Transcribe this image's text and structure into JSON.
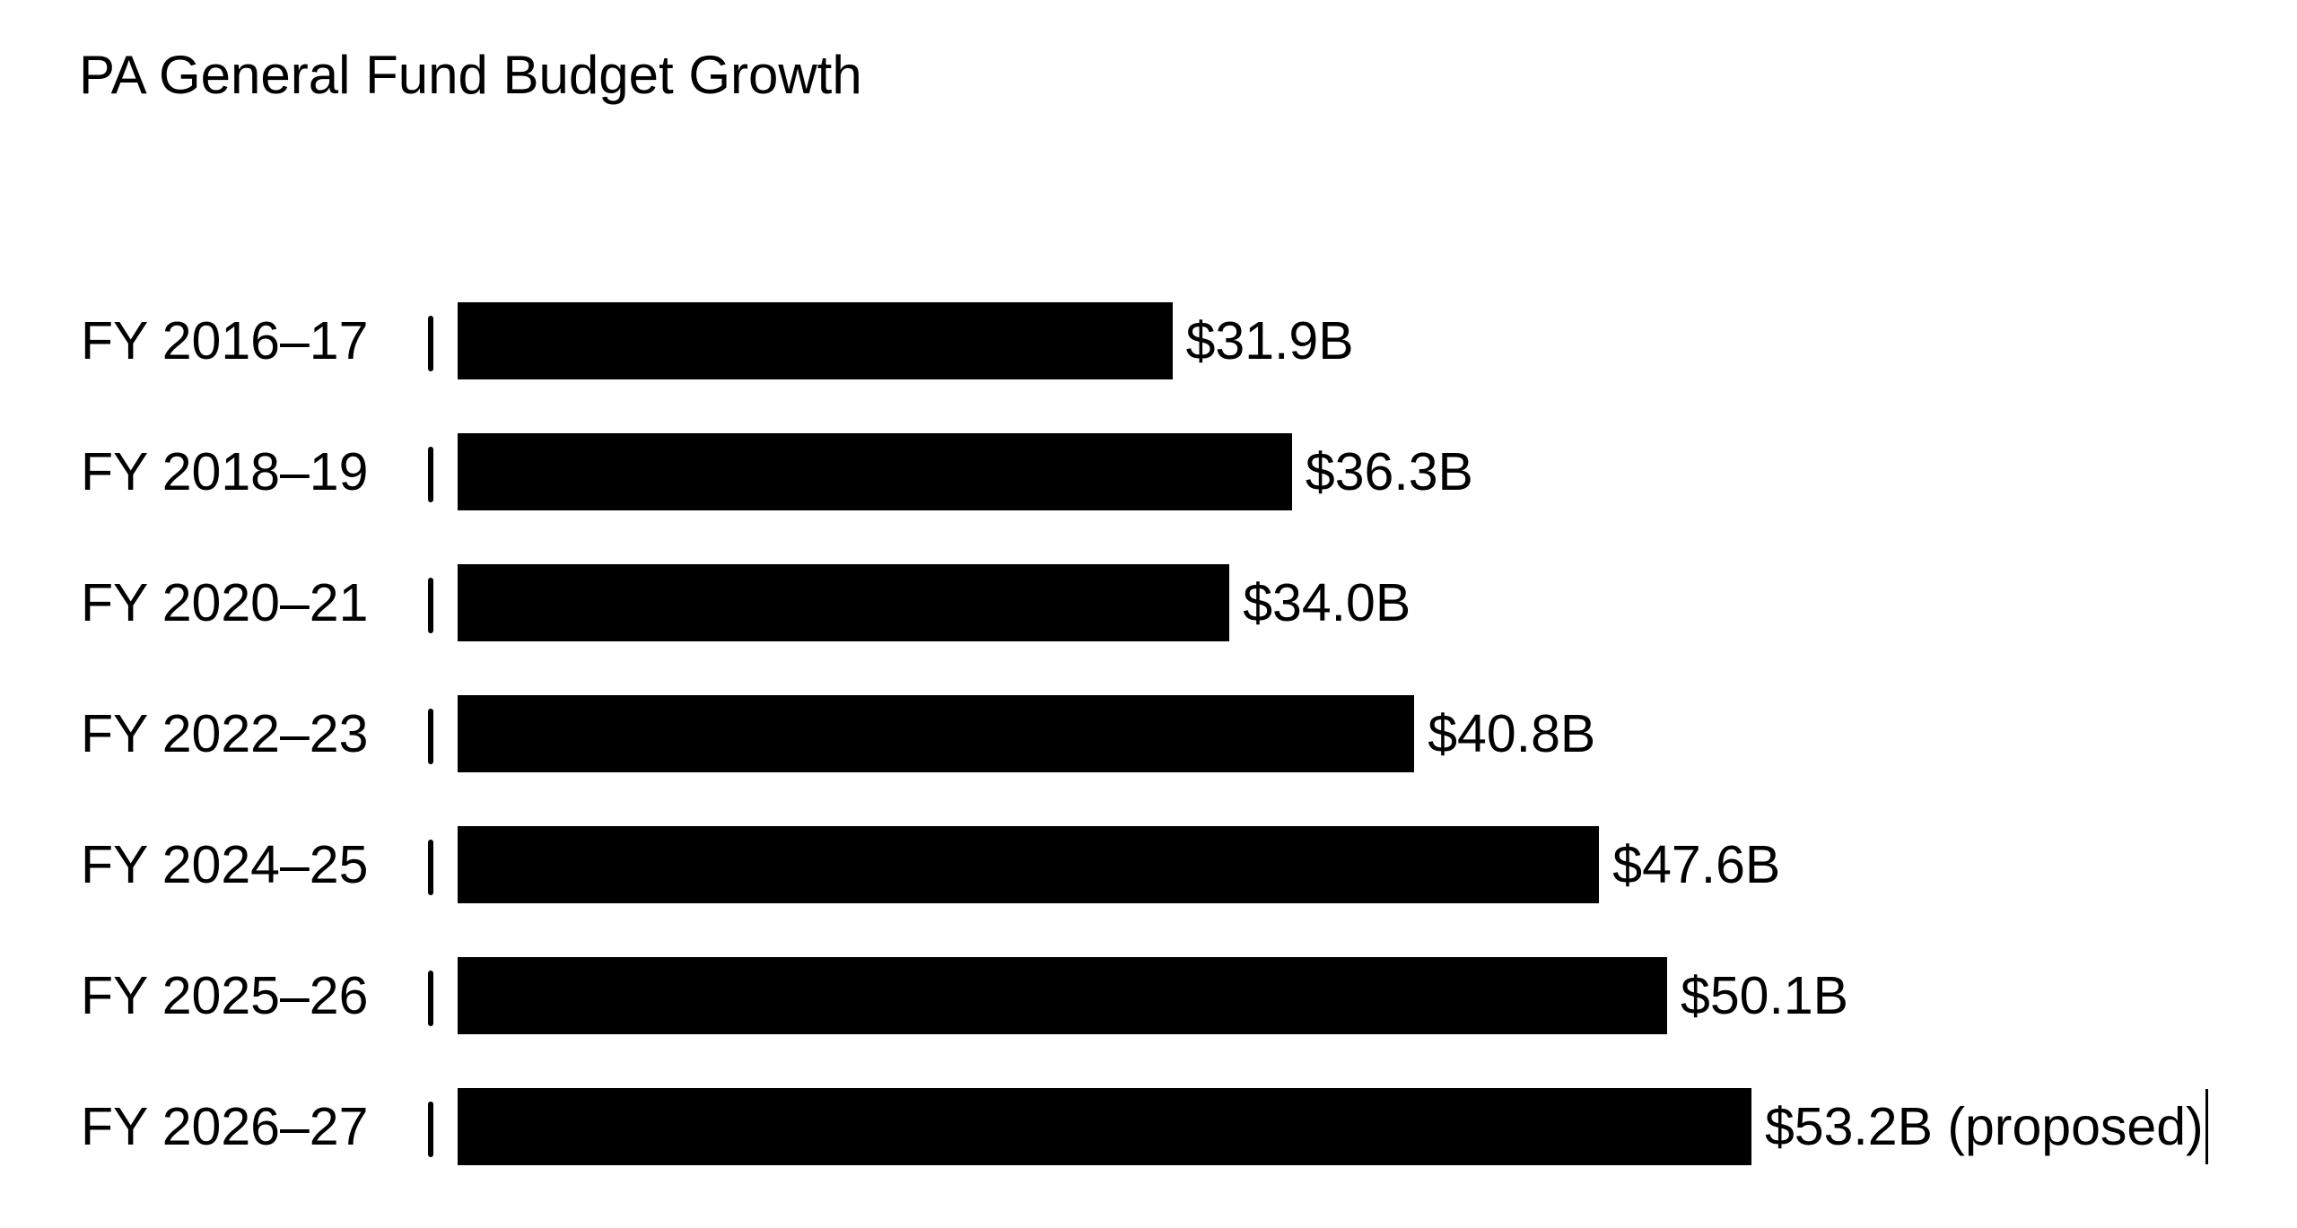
{
  "chart_data": {
    "type": "bar",
    "orientation": "horizontal",
    "title": "PA General Fund Budget Growth",
    "xlabel": "",
    "ylabel": "",
    "unit": "billion USD",
    "grid": false,
    "legend": "none",
    "bar_color": "#000000",
    "categories": [
      "FY 2016–17",
      "FY 2018–19",
      "FY 2020–21",
      "FY 2022–23",
      "FY 2024–25",
      "FY 2025–26",
      "FY 2026–27"
    ],
    "values": [
      31.9,
      36.3,
      34.0,
      40.8,
      47.6,
      50.1,
      53.2
    ],
    "data_labels": [
      "$31.9B",
      "$36.3B",
      "$34.0B",
      "$40.8B",
      "$47.6B",
      "$50.1B",
      "$53.2B (proposed)"
    ],
    "separator": "|",
    "annotations": [
      "proposed"
    ]
  }
}
